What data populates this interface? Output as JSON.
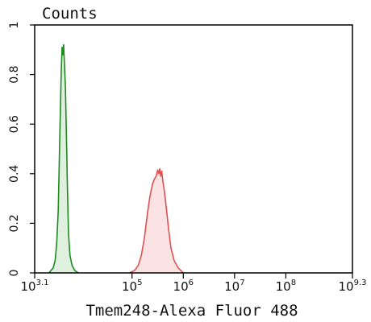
{
  "chart_data": {
    "type": "area",
    "ylabel": "Counts",
    "xlabel": "Tmem248-Alexa Fluor 488",
    "x_scale": "log",
    "xlim_log10": [
      3.1,
      9.3
    ],
    "ylim": [
      0,
      1
    ],
    "grid": false,
    "legend": "none",
    "x_ticks": [
      {
        "base": "10",
        "exp": "3.1",
        "value_log10": 3.1
      },
      {
        "base": "10",
        "exp": "5",
        "value_log10": 5
      },
      {
        "base": "10",
        "exp": "6",
        "value_log10": 6
      },
      {
        "base": "10",
        "exp": "7",
        "value_log10": 7
      },
      {
        "base": "10",
        "exp": "8",
        "value_log10": 8
      },
      {
        "base": "10",
        "exp": "9.3",
        "value_log10": 9.3
      }
    ],
    "y_ticks": [
      {
        "label": "0",
        "value": 0
      },
      {
        "label": "0.2",
        "value": 0.2
      },
      {
        "label": "0.4",
        "value": 0.4
      },
      {
        "label": "0.6",
        "value": 0.6
      },
      {
        "label": "0.8",
        "value": 0.8
      },
      {
        "label": "1",
        "value": 1
      }
    ],
    "series": [
      {
        "color": "#1f8a1f",
        "fill": "#dff0df",
        "points_log10": [
          [
            3.38,
            0
          ],
          [
            3.42,
            0.01
          ],
          [
            3.46,
            0.02
          ],
          [
            3.5,
            0.05
          ],
          [
            3.53,
            0.12
          ],
          [
            3.56,
            0.25
          ],
          [
            3.58,
            0.45
          ],
          [
            3.6,
            0.65
          ],
          [
            3.62,
            0.82
          ],
          [
            3.635,
            0.91
          ],
          [
            3.65,
            0.88
          ],
          [
            3.665,
            0.92
          ],
          [
            3.68,
            0.84
          ],
          [
            3.7,
            0.75
          ],
          [
            3.72,
            0.55
          ],
          [
            3.74,
            0.33
          ],
          [
            3.76,
            0.16
          ],
          [
            3.79,
            0.07
          ],
          [
            3.83,
            0.03
          ],
          [
            3.88,
            0.01
          ],
          [
            3.95,
            0
          ]
        ]
      },
      {
        "color": "#e05050",
        "fill": "#fbe3e3",
        "points_log10": [
          [
            4.95,
            0
          ],
          [
            5.05,
            0.01
          ],
          [
            5.12,
            0.03
          ],
          [
            5.18,
            0.07
          ],
          [
            5.24,
            0.14
          ],
          [
            5.3,
            0.24
          ],
          [
            5.35,
            0.31
          ],
          [
            5.4,
            0.36
          ],
          [
            5.44,
            0.38
          ],
          [
            5.47,
            0.39
          ],
          [
            5.5,
            0.415
          ],
          [
            5.52,
            0.4
          ],
          [
            5.54,
            0.42
          ],
          [
            5.56,
            0.39
          ],
          [
            5.58,
            0.41
          ],
          [
            5.6,
            0.37
          ],
          [
            5.63,
            0.33
          ],
          [
            5.67,
            0.26
          ],
          [
            5.71,
            0.18
          ],
          [
            5.76,
            0.1
          ],
          [
            5.82,
            0.05
          ],
          [
            5.9,
            0.02
          ],
          [
            6.0,
            0
          ]
        ]
      }
    ]
  }
}
